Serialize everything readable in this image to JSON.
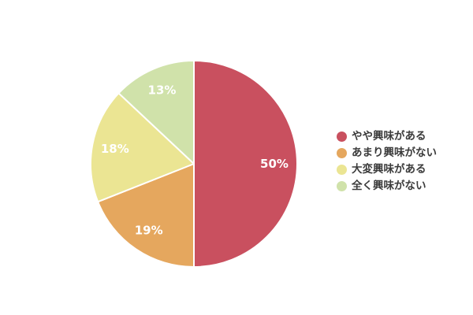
{
  "chart_data": {
    "type": "pie",
    "labels": [
      "やや興味がある",
      "あまり興味がない",
      "大変興味がある",
      "全く興味がない"
    ],
    "values": [
      50,
      19,
      18,
      13
    ],
    "slice_labels": [
      "50%",
      "19%",
      "18%",
      "13%"
    ],
    "colors": [
      "#C9505F",
      "#E5A75E",
      "#EBE593",
      "#D0E2AA"
    ],
    "slice_label_color": "#FFFFFF",
    "separator_color": "#FFFFFF",
    "legend_text_color": "#3B3B3B",
    "start_angle_deg": 0,
    "direction": "clockwise",
    "legend_position": "right",
    "background": "#FFFFFF"
  }
}
